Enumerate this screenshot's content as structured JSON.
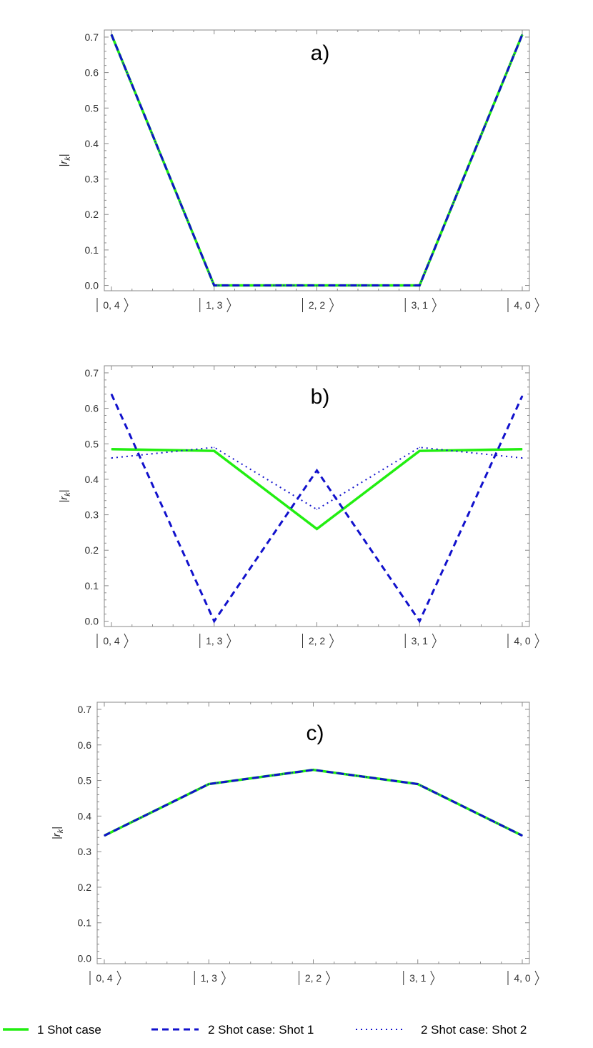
{
  "chart_data": [
    {
      "type": "line",
      "panel_label": "a)",
      "ylabel": "|r",
      "ylabel_sub": "k",
      "ylabel_suffix": "|",
      "ylim": [
        -0.015,
        0.72
      ],
      "yticks": [
        0.0,
        0.1,
        0.2,
        0.3,
        0.4,
        0.5,
        0.6,
        0.7
      ],
      "ytick_labels": [
        "0.0",
        "0.1",
        "0.2",
        "0.3",
        "0.4",
        "0.5",
        "0.6",
        "0.7"
      ],
      "categories": [
        "0, 4",
        "1, 3",
        "2, 2",
        "3, 1",
        "4, 0"
      ],
      "grid": false,
      "series": [
        {
          "name": "1 Shot case",
          "values": [
            0.707,
            0.0,
            0.0,
            0.0,
            0.707
          ]
        },
        {
          "name": "2 Shot case: Shot 1",
          "values": [
            0.707,
            0.0,
            0.0,
            0.0,
            0.707
          ]
        },
        {
          "name": "2 Shot case: Shot 2",
          "values": [
            0.707,
            0.0,
            0.0,
            0.0,
            0.707
          ]
        }
      ]
    },
    {
      "type": "line",
      "panel_label": "b)",
      "ylabel": "|r",
      "ylabel_sub": "k",
      "ylabel_suffix": "|",
      "ylim": [
        -0.015,
        0.72
      ],
      "yticks": [
        0.0,
        0.1,
        0.2,
        0.3,
        0.4,
        0.5,
        0.6,
        0.7
      ],
      "ytick_labels": [
        "0.0",
        "0.1",
        "0.2",
        "0.3",
        "0.4",
        "0.5",
        "0.6",
        "0.7"
      ],
      "categories": [
        "0, 4",
        "1, 3",
        "2, 2",
        "3, 1",
        "4, 0"
      ],
      "grid": false,
      "series": [
        {
          "name": "1 Shot case",
          "values": [
            0.485,
            0.48,
            0.26,
            0.48,
            0.485
          ]
        },
        {
          "name": "2 Shot case: Shot 1",
          "values": [
            0.64,
            0.0,
            0.425,
            0.0,
            0.635
          ]
        },
        {
          "name": "2 Shot case: Shot 2",
          "values": [
            0.46,
            0.49,
            0.315,
            0.49,
            0.46
          ]
        }
      ]
    },
    {
      "type": "line",
      "panel_label": "c)",
      "ylabel": "|r",
      "ylabel_sub": "k",
      "ylabel_suffix": "|",
      "ylim": [
        -0.015,
        0.72
      ],
      "yticks": [
        0.0,
        0.1,
        0.2,
        0.3,
        0.4,
        0.5,
        0.6,
        0.7
      ],
      "ytick_labels": [
        "0.0",
        "0.1",
        "0.2",
        "0.3",
        "0.4",
        "0.5",
        "0.6",
        "0.7"
      ],
      "categories": [
        "0, 4",
        "1, 3",
        "2, 2",
        "3, 1",
        "4, 0"
      ],
      "grid": false,
      "series": [
        {
          "name": "1 Shot case",
          "values": [
            0.345,
            0.49,
            0.53,
            0.49,
            0.345
          ]
        },
        {
          "name": "2 Shot case: Shot 1",
          "values": [
            0.345,
            0.49,
            0.53,
            0.49,
            0.345
          ]
        },
        {
          "name": "2 Shot case: Shot 2",
          "values": [
            0.345,
            0.49,
            0.53,
            0.49,
            0.345
          ]
        }
      ]
    }
  ],
  "legend": {
    "placement": "bottom",
    "entries": [
      {
        "label": "1 Shot case",
        "color": "#22ee11",
        "style": "solid"
      },
      {
        "label": "2 Shot case: Shot 1",
        "color": "#1111cc",
        "style": "dashed"
      },
      {
        "label": "2 Shot case: Shot 2",
        "color": "#1111cc",
        "style": "dotted"
      }
    ]
  },
  "colors": {
    "one_shot": "#22ee11",
    "two_shot": "#1111cc",
    "frame": "#8a8a8a",
    "text": "#333333"
  }
}
